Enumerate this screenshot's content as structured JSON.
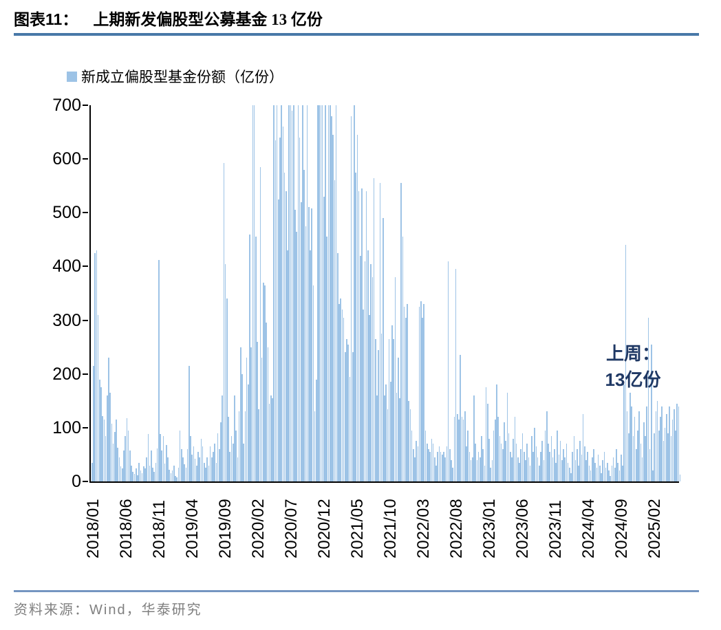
{
  "figure": {
    "label": "图表11：",
    "title": "上期新发偏股型公募基金 13 亿份"
  },
  "legend": {
    "label": "新成立偏股型基金份额（亿份）",
    "swatch_color": "#9DC3E6"
  },
  "annotation": {
    "line1": "上周：",
    "line2": "13亿份",
    "color": "#1F3864"
  },
  "source": {
    "text": "资料来源：Wind，华泰研究"
  },
  "colors": {
    "bar": "#9DC3E6",
    "axis": "#000000",
    "title_rule": "#4878A8",
    "footer_rule": "#7495C1",
    "annotation": "#1F3864",
    "source_text": "#7F7F7F"
  },
  "chart_data": {
    "type": "bar",
    "title": "上期新发偏股型公募基金 13 亿份",
    "series_name": "新成立偏股型基金份额（亿份）",
    "unit": "亿份",
    "frequency": "weekly",
    "ylim": [
      0,
      700
    ],
    "ytick_step": 100,
    "y_tick_labels": [
      "0",
      "100",
      "200",
      "300",
      "400",
      "500",
      "600",
      "700"
    ],
    "x_tick_labels": [
      "2018/01",
      "2018/06",
      "2018/11",
      "2019/04",
      "2019/09",
      "2020/02",
      "2020/07",
      "2020/12",
      "2021/05",
      "2021/10",
      "2022/03",
      "2022/08",
      "2023/01",
      "2023/06",
      "2023/11",
      "2024/04",
      "2024/09",
      "2025/02"
    ],
    "grid": false,
    "legend_position": "top-left",
    "values_capped_at_ylim": true,
    "last_value": 13,
    "values": [
      35,
      215,
      425,
      430,
      310,
      190,
      175,
      122,
      115,
      85,
      160,
      230,
      165,
      108,
      70,
      92,
      115,
      63,
      45,
      28,
      24,
      58,
      85,
      118,
      95,
      58,
      30,
      18,
      14,
      24,
      12,
      34,
      20,
      15,
      28,
      24,
      45,
      88,
      30,
      58,
      25,
      18,
      35,
      62,
      412,
      88,
      58,
      85,
      33,
      68,
      45,
      22,
      15,
      20,
      30,
      10,
      8,
      25,
      95,
      60,
      45,
      32,
      25,
      60,
      215,
      85,
      50,
      65,
      42,
      30,
      55,
      45,
      80,
      65,
      35,
      25,
      45,
      30,
      65,
      45,
      55,
      70,
      35,
      90,
      60,
      110,
      160,
      592,
      405,
      340,
      120,
      55,
      85,
      70,
      160,
      95,
      45,
      130,
      250,
      200,
      70,
      130,
      230,
      180,
      460,
      250,
      700,
      700,
      455,
      260,
      135,
      585,
      230,
      370,
      365,
      295,
      250,
      145,
      160,
      155,
      700,
      635,
      700,
      525,
      640,
      700,
      660,
      575,
      540,
      430,
      700,
      700,
      690,
      700,
      505,
      465,
      700,
      640,
      520,
      700,
      580,
      475,
      700,
      510,
      430,
      508,
      365,
      130,
      190,
      700,
      700,
      700,
      700,
      530,
      700,
      455,
      700,
      700,
      680,
      645,
      560,
      700,
      425,
      330,
      340,
      320,
      305,
      240,
      265,
      255,
      195,
      680,
      240,
      700,
      575,
      645,
      540,
      420,
      545,
      320,
      410,
      540,
      430,
      310,
      405,
      380,
      565,
      265,
      160,
      245,
      555,
      275,
      490,
      160,
      180,
      135,
      265,
      185,
      290,
      265,
      380,
      165,
      230,
      155,
      555,
      455,
      325,
      305,
      330,
      150,
      135,
      95,
      60,
      45,
      75,
      65,
      325,
      335,
      305,
      330,
      95,
      70,
      60,
      55,
      80,
      70,
      45,
      30,
      55,
      65,
      55,
      50,
      55,
      45,
      65,
      410,
      60,
      40,
      25,
      120,
      395,
      125,
      115,
      235,
      120,
      115,
      130,
      65,
      95,
      55,
      40,
      45,
      160,
      70,
      40,
      55,
      45,
      85,
      60,
      30,
      175,
      145,
      80,
      25,
      40,
      95,
      115,
      180,
      120,
      85,
      70,
      60,
      110,
      75,
      165,
      90,
      55,
      45,
      80,
      120,
      70,
      45,
      35,
      60,
      90,
      55,
      40,
      70,
      45,
      30,
      85,
      55,
      100,
      65,
      45,
      30,
      55,
      75,
      40,
      95,
      130,
      70,
      55,
      85,
      45,
      60,
      35,
      95,
      50,
      75,
      40,
      60,
      45,
      70,
      35,
      25,
      15,
      55,
      85,
      40,
      60,
      30,
      75,
      50,
      125,
      65,
      40,
      55,
      30,
      20,
      45,
      60,
      35,
      25,
      50,
      30,
      15,
      40,
      55,
      25,
      35,
      20,
      10,
      30,
      45,
      25,
      60,
      35,
      20,
      50,
      30,
      180,
      440,
      130,
      90,
      165,
      140,
      85,
      120,
      60,
      95,
      130,
      70,
      45,
      110,
      85,
      140,
      305,
      60,
      255,
      20,
      90,
      130,
      150,
      95,
      120,
      140,
      75,
      100,
      125,
      90,
      140,
      85,
      115,
      135,
      95,
      145,
      140,
      13
    ]
  }
}
